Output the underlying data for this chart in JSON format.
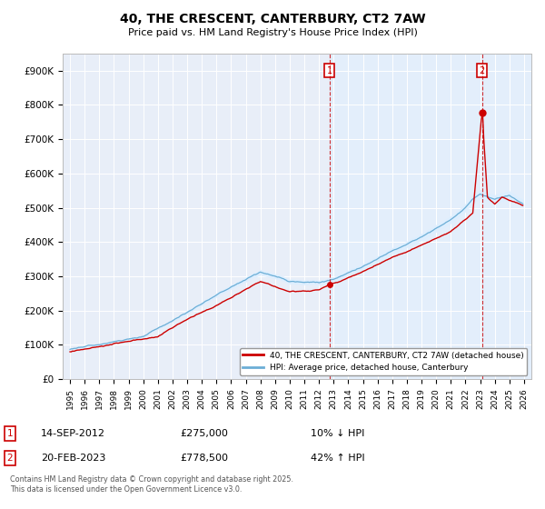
{
  "title": "40, THE CRESCENT, CANTERBURY, CT2 7AW",
  "subtitle": "Price paid vs. HM Land Registry's House Price Index (HPI)",
  "hpi_color": "#6baed6",
  "hpi_fill_color": "#ddeeff",
  "price_color": "#cc0000",
  "plot_bg": "#e8eef8",
  "grid_color": "#ffffff",
  "ylim": [
    0,
    950000
  ],
  "yticks": [
    0,
    100000,
    200000,
    300000,
    400000,
    500000,
    600000,
    700000,
    800000,
    900000
  ],
  "ytick_labels": [
    "£0",
    "£100K",
    "£200K",
    "£300K",
    "£400K",
    "£500K",
    "£600K",
    "£700K",
    "£800K",
    "£900K"
  ],
  "sale1_date": "14-SEP-2012",
  "sale1_price": 275000,
  "sale1_hpi_diff": "10% ↓ HPI",
  "sale1_x": 2012.72,
  "sale2_date": "20-FEB-2023",
  "sale2_price": 778500,
  "sale2_hpi_diff": "42% ↑ HPI",
  "sale2_x": 2023.13,
  "legend_label1": "40, THE CRESCENT, CANTERBURY, CT2 7AW (detached house)",
  "legend_label2": "HPI: Average price, detached house, Canterbury",
  "footer1": "Contains HM Land Registry data © Crown copyright and database right 2025.",
  "footer2": "This data is licensed under the Open Government Licence v3.0."
}
